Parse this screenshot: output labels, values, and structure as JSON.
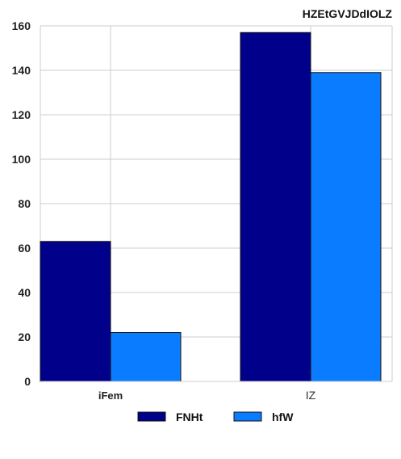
{
  "chart_data": {
    "type": "bar",
    "title": "HZEtGVJDdIOLZ",
    "categories": [
      "iFem",
      "IZ"
    ],
    "series": [
      {
        "name": "FNHt",
        "values": [
          63,
          157
        ],
        "color": "#00008B"
      },
      {
        "name": "hfW",
        "values": [
          22,
          139
        ],
        "color": "#0A7CFF"
      }
    ],
    "ylim": [
      0,
      160
    ],
    "yticks": [
      0,
      20,
      40,
      60,
      80,
      100,
      120,
      140,
      160
    ],
    "xlabel": "",
    "ylabel": "",
    "grid": true,
    "legend_position": "bottom-center"
  }
}
